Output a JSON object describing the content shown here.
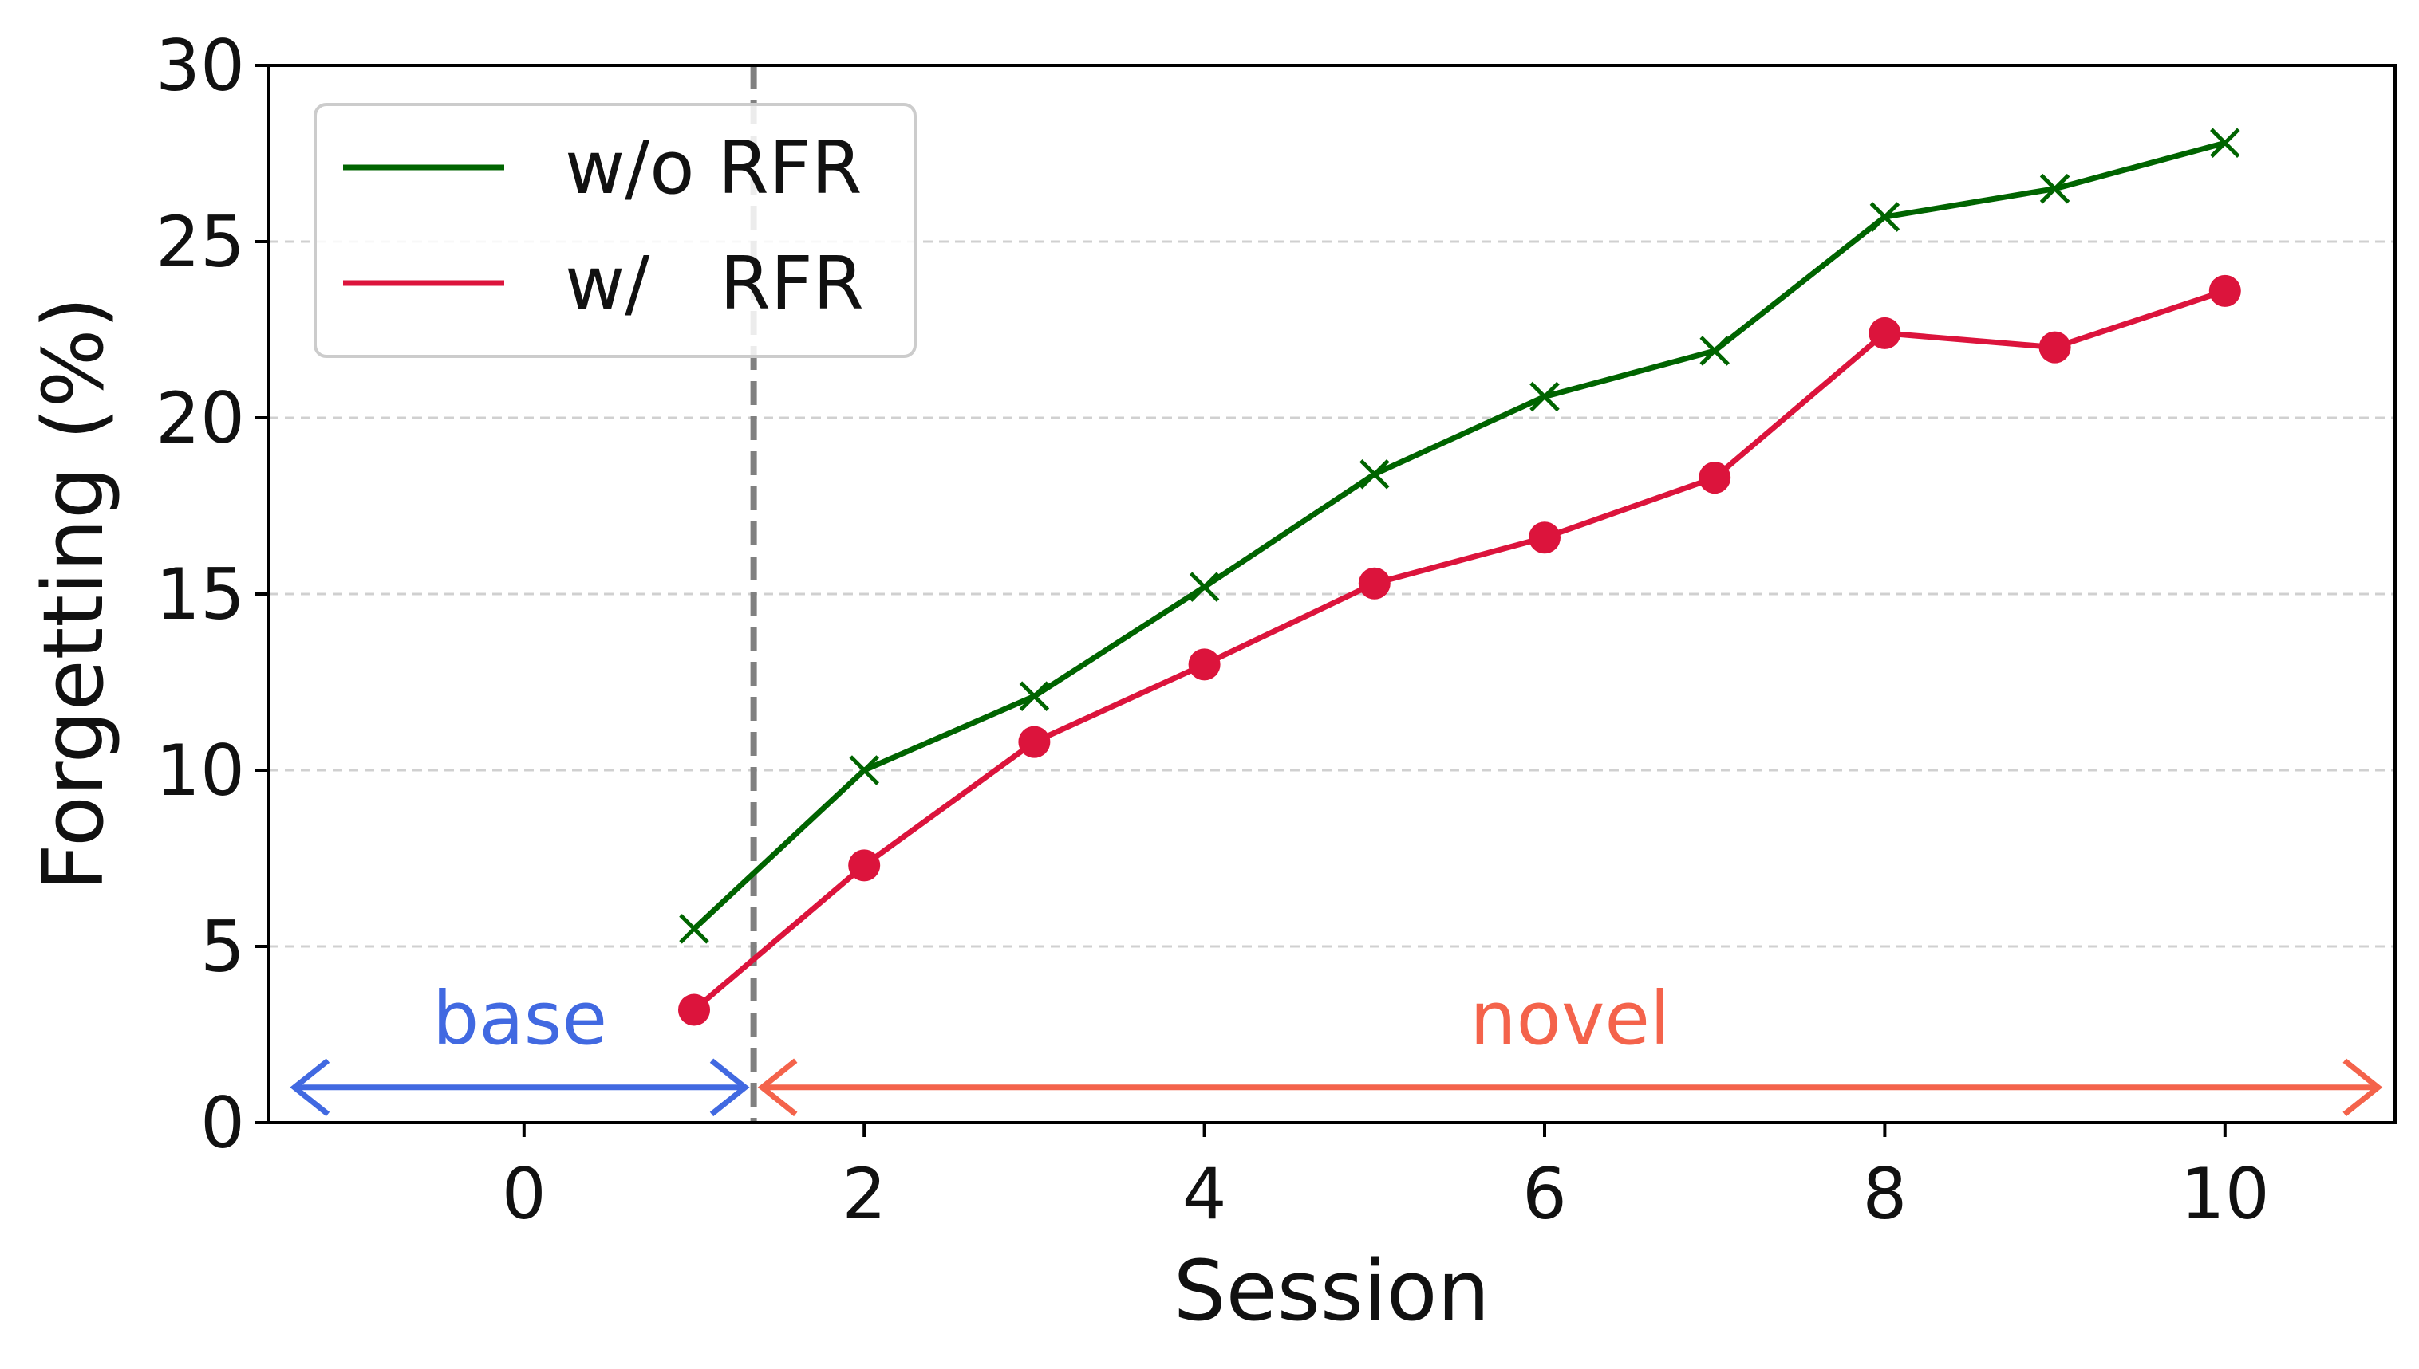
{
  "chart_data": {
    "type": "line",
    "xlabel": "Session",
    "ylabel": "Forgetting (%)",
    "xlim": [
      -1.5,
      11.0
    ],
    "ylim": [
      0,
      30
    ],
    "xticks": [
      0,
      2,
      4,
      6,
      8,
      10
    ],
    "xtick_labels": [
      "0",
      "2",
      "4",
      "6",
      "8",
      "10"
    ],
    "yticks": [
      0,
      5,
      10,
      15,
      20,
      25,
      30
    ],
    "ytick_labels": [
      "0",
      "5",
      "10",
      "15",
      "20",
      "25",
      "30"
    ],
    "grid": "horizontal dashed",
    "legend_position": "upper-left",
    "x": [
      1,
      2,
      3,
      4,
      5,
      6,
      7,
      8,
      9,
      10
    ],
    "series": [
      {
        "name": "w/o RFR",
        "color": "#006400",
        "marker": "x",
        "values": [
          5.5,
          10.0,
          12.1,
          15.2,
          18.4,
          20.6,
          21.9,
          25.7,
          26.5,
          27.8
        ]
      },
      {
        "name": "w/   RFR",
        "color": "#DC143C",
        "marker": "circle",
        "values": [
          3.2,
          7.3,
          10.8,
          13.0,
          15.3,
          16.6,
          18.3,
          22.4,
          22.0,
          23.6
        ]
      }
    ],
    "divider": {
      "x": 1.35,
      "color": "#808080",
      "style": "dashed"
    },
    "regions": [
      {
        "label": "base",
        "x_from": -1.35,
        "x_to": 1.3,
        "y": 1,
        "color": "#4169E1"
      },
      {
        "label": "novel",
        "x_from": 1.4,
        "x_to": 10.9,
        "y": 1,
        "color": "#F4634B"
      }
    ]
  }
}
